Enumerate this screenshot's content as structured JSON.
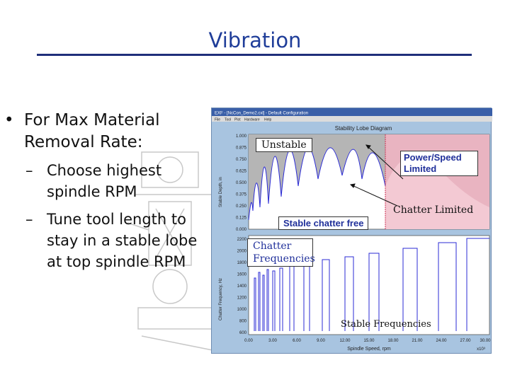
{
  "slide": {
    "title": "Vibration",
    "bullet": "For Max Material Removal Rate:",
    "sub_bullets": [
      "Choose highest spindle RPM",
      "Tune tool length to stay in a stable lobe at top spindle RPM"
    ]
  },
  "screenshot": {
    "window_title": "EXF - [NcCon_Demo2.cxl] - Default Configuration",
    "menu": [
      "File",
      "Tool",
      "Plot",
      "Hardware",
      "Help"
    ],
    "chart_title": "Stability Lobe Diagram",
    "top_ylabel": "Stable Depth, in",
    "top_yticks": [
      "1.000",
      "0.875",
      "0.750",
      "0.625",
      "0.500",
      "0.375",
      "0.250",
      "0.125",
      "0.000"
    ],
    "bottom_ylabel": "Chatter Frequency, Hz",
    "bottom_yticks": [
      "2200",
      "2000",
      "1800",
      "1600",
      "1400",
      "1200",
      "1000",
      "800",
      "600"
    ],
    "xticks": [
      "0.00",
      "3.00",
      "6.00",
      "9.00",
      "12.00",
      "15.00",
      "18.00",
      "21.00",
      "24.00",
      "27.00",
      "30.00"
    ],
    "xlabel": "Spindle Speed, rpm",
    "xscale": "x10³",
    "annotations": {
      "unstable": "Unstable",
      "power_limited": "Power/Speed Limited",
      "chatter_limited": "Chatter Limited",
      "stable": "Stable chatter free",
      "chatter_freq": "Chatter Frequencies",
      "stable_freq": "Stable Frequencies"
    }
  },
  "colors": {
    "title": "#1f3d99",
    "lobe_line": "#2b2bd6",
    "unstable_fill": "#b5b5b5",
    "power_region": "#f3c9d3"
  }
}
